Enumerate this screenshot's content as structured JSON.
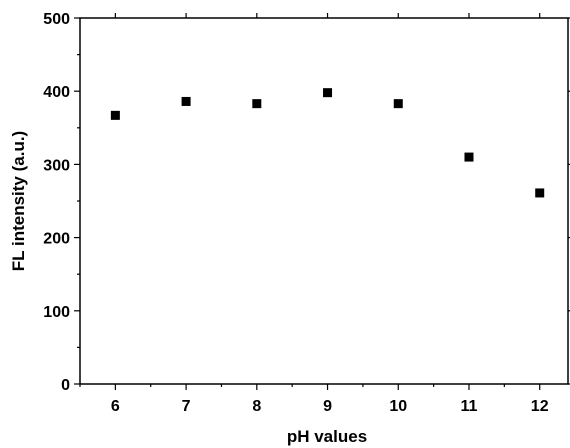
{
  "chart_data": {
    "type": "scatter",
    "title": "",
    "xlabel": "pH values",
    "ylabel": "FL intensity (a.u.)",
    "xlim": [
      5.5,
      12.4
    ],
    "ylim": [
      0,
      500
    ],
    "x_ticks": [
      6,
      7,
      8,
      9,
      10,
      11,
      12
    ],
    "y_ticks": [
      0,
      100,
      200,
      300,
      400,
      500
    ],
    "x_tick_labels": [
      "6",
      "7",
      "8",
      "9",
      "10",
      "11",
      "12"
    ],
    "y_tick_labels": [
      "0",
      "100",
      "200",
      "300",
      "400",
      "500"
    ],
    "grid": false,
    "legend": "none",
    "marker": "square",
    "marker_color": "#000000",
    "series": [
      {
        "x": [
          6,
          7,
          8,
          9,
          10,
          11,
          12
        ],
        "y": [
          367,
          386,
          383,
          398,
          383,
          310,
          261
        ]
      }
    ]
  }
}
